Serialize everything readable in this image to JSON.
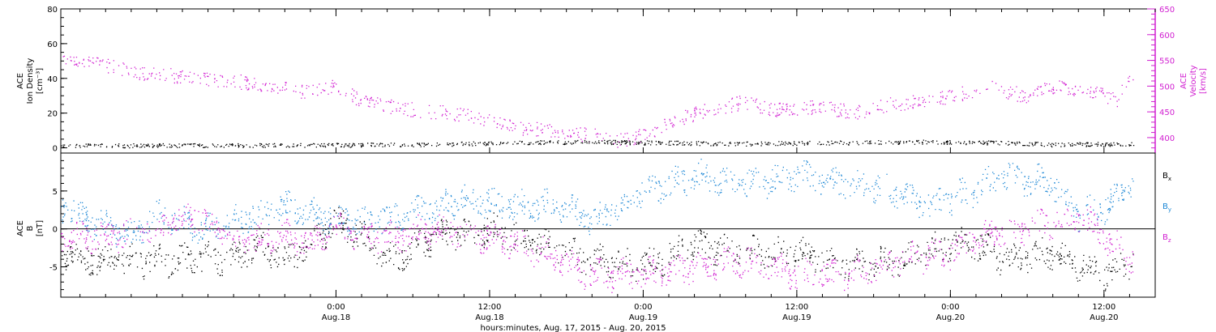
{
  "colors": {
    "black": "#000000",
    "magenta": "#d11fd1",
    "blue": "#1e88d6"
  },
  "footer": {
    "title": "hours:minutes, Aug. 17, 2015 - Aug. 20, 2015"
  },
  "chart_data": [
    {
      "type": "scatter",
      "panel": "top",
      "ylabel_left": [
        "ACE",
        "Ion Density",
        "[cm⁻³]"
      ],
      "ylabel_right": [
        "ACE",
        "Velocity",
        "[km/s]"
      ],
      "y_left_lim": [
        -3,
        80
      ],
      "y_left_ticks": [
        "0",
        "20",
        "40",
        "60",
        "80"
      ],
      "y_right_lim": [
        370,
        650
      ],
      "y_right_ticks": [
        "400",
        "450",
        "500",
        "550",
        "600",
        "650"
      ],
      "x_hours_lim": [
        2.5,
        88.0
      ],
      "grid": false,
      "series": [
        {
          "color": "magenta",
          "axis": "right",
          "anchors": [
            [
              2.5,
              560
            ],
            [
              6,
              540
            ],
            [
              9,
              525
            ],
            [
              12,
              520
            ],
            [
              16,
              510
            ],
            [
              18,
              505
            ],
            [
              21,
              490
            ],
            [
              24,
              500
            ],
            [
              26,
              470
            ],
            [
              30,
              455
            ],
            [
              34,
              445
            ],
            [
              38,
              420
            ],
            [
              41,
              415
            ],
            [
              44,
              405
            ],
            [
              46,
              395
            ],
            [
              48,
              405
            ],
            [
              50,
              430
            ],
            [
              53,
              455
            ],
            [
              56,
              470
            ],
            [
              58,
              455
            ],
            [
              61,
              460
            ],
            [
              65,
              450
            ],
            [
              67,
              465
            ],
            [
              70,
              470
            ],
            [
              72,
              480
            ],
            [
              75,
              500
            ],
            [
              78,
              480
            ],
            [
              80,
              500
            ],
            [
              83,
              490
            ],
            [
              85,
              475
            ],
            [
              86.3,
              525
            ]
          ]
        },
        {
          "color": "black",
          "axis": "left",
          "anchors": [
            [
              2.5,
              1.5
            ],
            [
              10,
              1.5
            ],
            [
              20,
              1.5
            ],
            [
              30,
              2
            ],
            [
              38,
              3
            ],
            [
              44,
              3.5
            ],
            [
              50,
              3
            ],
            [
              56,
              2.5
            ],
            [
              62,
              3
            ],
            [
              70,
              3.5
            ],
            [
              76,
              3
            ],
            [
              80,
              2
            ],
            [
              86.3,
              2.5
            ]
          ]
        }
      ]
    },
    {
      "type": "scatter",
      "panel": "bottom",
      "ylabel": [
        "ACE",
        "B",
        "[nT]"
      ],
      "ylim": [
        -9,
        10
      ],
      "y_ticks": [
        "-5",
        "0",
        "5"
      ],
      "x_hours_lim": [
        2.5,
        88.0
      ],
      "zero_line": true,
      "series": [
        {
          "name": "Bx",
          "color": "black",
          "anchors": [
            [
              2.5,
              -3
            ],
            [
              5,
              -4
            ],
            [
              8,
              -4.2
            ],
            [
              12,
              -4
            ],
            [
              16,
              -4
            ],
            [
              18,
              -2
            ],
            [
              20,
              -4
            ],
            [
              21,
              -3
            ],
            [
              24,
              1
            ],
            [
              26,
              -1
            ],
            [
              28,
              -4
            ],
            [
              32,
              -1
            ],
            [
              36,
              0
            ],
            [
              40,
              -2
            ],
            [
              44,
              -4
            ],
            [
              48,
              -5
            ],
            [
              52,
              -2
            ],
            [
              56,
              -3
            ],
            [
              60,
              -3
            ],
            [
              64,
              -5
            ],
            [
              68,
              -4
            ],
            [
              72,
              -2
            ],
            [
              74,
              -2
            ],
            [
              76,
              -4
            ],
            [
              80,
              -3
            ],
            [
              84,
              -6
            ],
            [
              86.3,
              -4
            ]
          ]
        },
        {
          "name": "By",
          "color": "blue",
          "anchors": [
            [
              2.5,
              3
            ],
            [
              5,
              1
            ],
            [
              8,
              -1
            ],
            [
              10,
              2
            ],
            [
              14,
              0
            ],
            [
              16,
              1
            ],
            [
              18,
              2
            ],
            [
              20,
              3
            ],
            [
              22,
              2
            ],
            [
              26,
              1
            ],
            [
              30,
              2
            ],
            [
              34,
              4
            ],
            [
              38,
              3
            ],
            [
              42,
              3
            ],
            [
              44,
              1
            ],
            [
              48,
              5
            ],
            [
              52,
              7
            ],
            [
              56,
              6
            ],
            [
              60,
              7
            ],
            [
              64,
              6
            ],
            [
              68,
              5
            ],
            [
              70,
              3
            ],
            [
              72,
              4
            ],
            [
              74,
              5
            ],
            [
              76,
              7
            ],
            [
              80,
              6
            ],
            [
              82,
              2
            ],
            [
              84,
              3
            ],
            [
              86.3,
              6
            ]
          ]
        },
        {
          "name": "Bz",
          "color": "magenta",
          "anchors": [
            [
              2.5,
              -1
            ],
            [
              6,
              -1
            ],
            [
              10,
              0
            ],
            [
              13,
              2
            ],
            [
              16,
              -2
            ],
            [
              20,
              -1
            ],
            [
              22,
              -2
            ],
            [
              24,
              0
            ],
            [
              28,
              -1
            ],
            [
              32,
              0
            ],
            [
              36,
              -1
            ],
            [
              40,
              -3
            ],
            [
              44,
              -6
            ],
            [
              48,
              -6
            ],
            [
              52,
              -5
            ],
            [
              56,
              -4
            ],
            [
              60,
              -6
            ],
            [
              64,
              -6
            ],
            [
              68,
              -4
            ],
            [
              72,
              -3
            ],
            [
              74,
              -1
            ],
            [
              78,
              0
            ],
            [
              80,
              1
            ],
            [
              82,
              2
            ],
            [
              84,
              -1
            ],
            [
              86.3,
              -4
            ]
          ]
        }
      ],
      "legend": [
        {
          "base": "B",
          "sub": "x",
          "color": "black"
        },
        {
          "base": "B",
          "sub": "y",
          "color": "blue"
        },
        {
          "base": "B",
          "sub": "z",
          "color": "magenta"
        }
      ]
    }
  ],
  "x_axis": {
    "ticks": [
      {
        "hours": 24,
        "time": "0:00",
        "date": "Aug.18"
      },
      {
        "hours": 36,
        "time": "12:00",
        "date": "Aug.18"
      },
      {
        "hours": 48,
        "time": "0:00",
        "date": "Aug.19"
      },
      {
        "hours": 60,
        "time": "12:00",
        "date": "Aug.19"
      },
      {
        "hours": 72,
        "time": "0:00",
        "date": "Aug.20"
      },
      {
        "hours": 84,
        "time": "12:00",
        "date": "Aug.20"
      }
    ],
    "minor_step_hours": 2
  }
}
